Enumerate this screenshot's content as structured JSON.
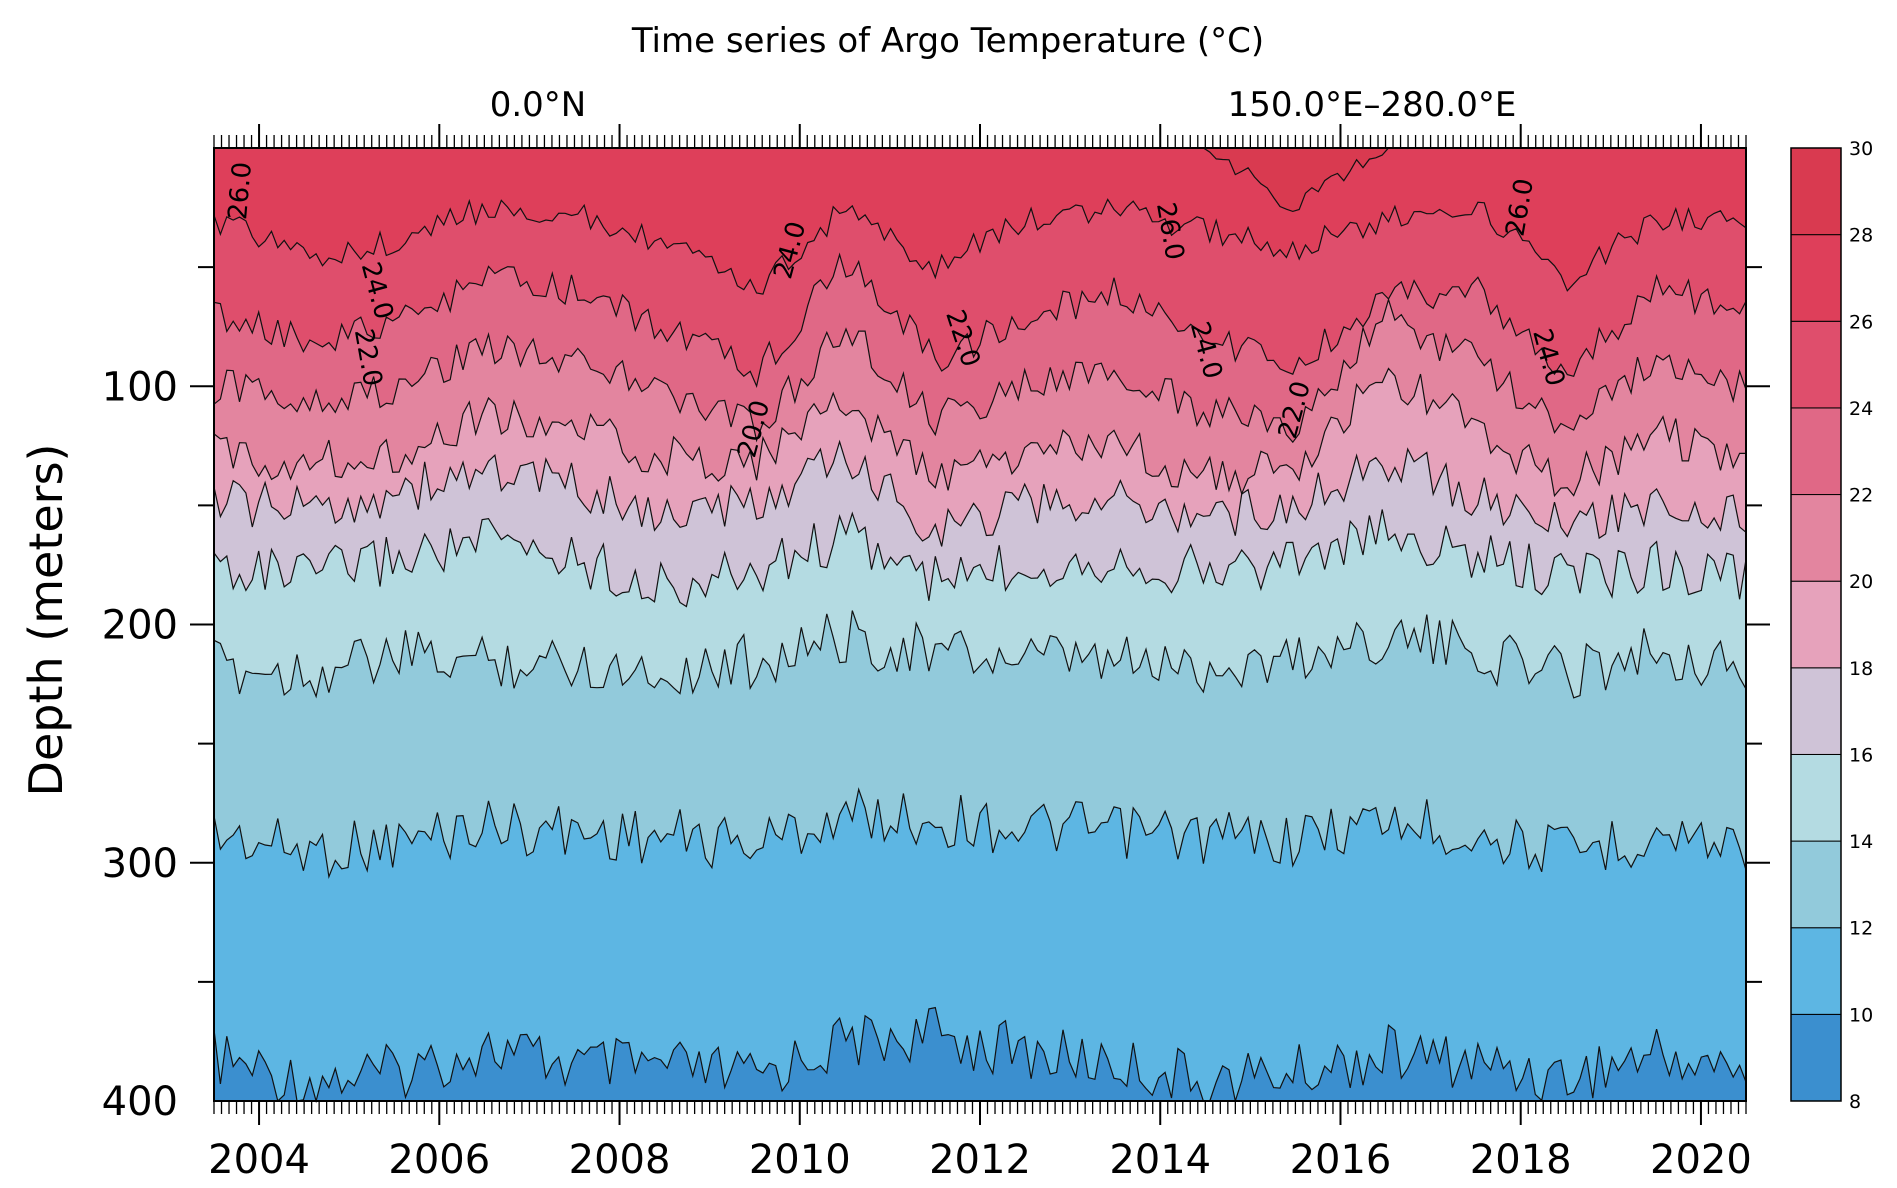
{
  "chart_data": {
    "type": "heatmap",
    "subtype": "filled-contour",
    "title": "Time series of Argo Temperature (°C)",
    "left_subtitle": "0.0°N",
    "right_subtitle": "150.0°E–280.0°E",
    "xlabel": "",
    "ylabel": "Depth (meters)",
    "xlim": [
      2003.5,
      2020.5
    ],
    "ylim": [
      0,
      400
    ],
    "y_reversed": true,
    "x_ticks": [
      2004,
      2006,
      2008,
      2010,
      2012,
      2014,
      2016,
      2018,
      2020
    ],
    "x_tick_labels": [
      "2004",
      "2006",
      "2008",
      "2010",
      "2012",
      "2014",
      "2016",
      "2018",
      "2020"
    ],
    "y_ticks": [
      100,
      200,
      300,
      400
    ],
    "y_tick_labels": [
      "100",
      "200",
      "300",
      "400"
    ],
    "contour_levels": [
      8,
      10,
      12,
      14,
      16,
      18,
      20,
      22,
      24,
      26,
      28,
      30
    ],
    "colorbar_labels": [
      "30",
      "28",
      "26",
      "24",
      "22",
      "20",
      "18",
      "16",
      "14",
      "12",
      "10",
      "8"
    ],
    "fill_colors": [
      "#3b8fcf",
      "#5db6e3",
      "#92cadb",
      "#b4dbe2",
      "#cfc3d7",
      "#e6a2bb",
      "#e3859f",
      "#e06886",
      "#df4e6c",
      "#de3f5a",
      "#d93a50"
    ],
    "sample_times": [
      2003.5,
      2004.5,
      2005.5,
      2006.5,
      2007.5,
      2008.5,
      2009.5,
      2010.5,
      2011.5,
      2012.5,
      2013.5,
      2014.5,
      2015.5,
      2016.5,
      2017.5,
      2018.5,
      2019.5,
      2020.5
    ],
    "isotherm_depths": [
      {
        "temperature": 10,
        "depth_m": [
          382,
          392,
          388,
          378,
          385,
          386,
          390,
          375,
          372,
          380,
          384,
          392,
          388,
          380,
          384,
          390,
          380,
          388
        ]
      },
      {
        "temperature": 12,
        "depth_m": [
          288,
          295,
          292,
          284,
          287,
          289,
          292,
          280,
          282,
          285,
          287,
          289,
          290,
          282,
          288,
          296,
          288,
          292
        ]
      },
      {
        "temperature": 14,
        "depth_m": [
          218,
          220,
          214,
          215,
          216,
          220,
          215,
          205,
          212,
          215,
          216,
          218,
          214,
          204,
          212,
          220,
          210,
          220
        ]
      },
      {
        "temperature": 16,
        "depth_m": [
          175,
          180,
          172,
          165,
          172,
          185,
          178,
          162,
          182,
          175,
          172,
          178,
          172,
          162,
          172,
          180,
          175,
          180
        ]
      },
      {
        "temperature": 18,
        "depth_m": [
          148,
          152,
          145,
          135,
          142,
          155,
          150,
          130,
          160,
          150,
          148,
          155,
          150,
          130,
          145,
          160,
          148,
          155
        ]
      },
      {
        "temperature": 20,
        "depth_m": [
          128,
          132,
          128,
          112,
          118,
          130,
          132,
          105,
          140,
          128,
          125,
          138,
          135,
          95,
          118,
          140,
          120,
          130
        ]
      },
      {
        "temperature": 22,
        "depth_m": [
          100,
          105,
          102,
          82,
          88,
          102,
          118,
          75,
          115,
          100,
          95,
          110,
          118,
          70,
          90,
          120,
          88,
          100
        ]
      },
      {
        "temperature": 24,
        "depth_m": [
          70,
          80,
          75,
          55,
          60,
          75,
          95,
          48,
          88,
          72,
          60,
          78,
          92,
          62,
          60,
          96,
          58,
          70
        ]
      },
      {
        "temperature": 26,
        "depth_m": [
          30,
          45,
          40,
          25,
          28,
          40,
          60,
          25,
          50,
          30,
          25,
          35,
          42,
          30,
          25,
          55,
          30,
          30
        ]
      },
      {
        "temperature": 28,
        "depth_m": [
          0,
          0,
          0,
          0,
          0,
          0,
          0,
          0,
          0,
          0,
          0,
          0,
          25,
          0,
          0,
          0,
          0,
          0
        ]
      }
    ],
    "contour_labels": [
      {
        "text": "26.0",
        "x": 2003.8,
        "depth": 18,
        "rotate": -85
      },
      {
        "text": "24.0",
        "x": 2005.3,
        "depth": 60,
        "rotate": 75
      },
      {
        "text": "22.0",
        "x": 2005.2,
        "depth": 88,
        "rotate": 80
      },
      {
        "text": "24.0",
        "x": 2009.9,
        "depth": 43,
        "rotate": -75
      },
      {
        "text": "20.0",
        "x": 2009.5,
        "depth": 118,
        "rotate": -75
      },
      {
        "text": "22.0",
        "x": 2011.8,
        "depth": 80,
        "rotate": 72
      },
      {
        "text": "26.0",
        "x": 2014.1,
        "depth": 35,
        "rotate": 80
      },
      {
        "text": "24.0",
        "x": 2014.5,
        "depth": 85,
        "rotate": 75
      },
      {
        "text": "22.0",
        "x": 2015.5,
        "depth": 110,
        "rotate": -75
      },
      {
        "text": "26.0",
        "x": 2018.0,
        "depth": 25,
        "rotate": -80
      },
      {
        "text": "24.0",
        "x": 2018.3,
        "depth": 88,
        "rotate": 75
      }
    ]
  }
}
